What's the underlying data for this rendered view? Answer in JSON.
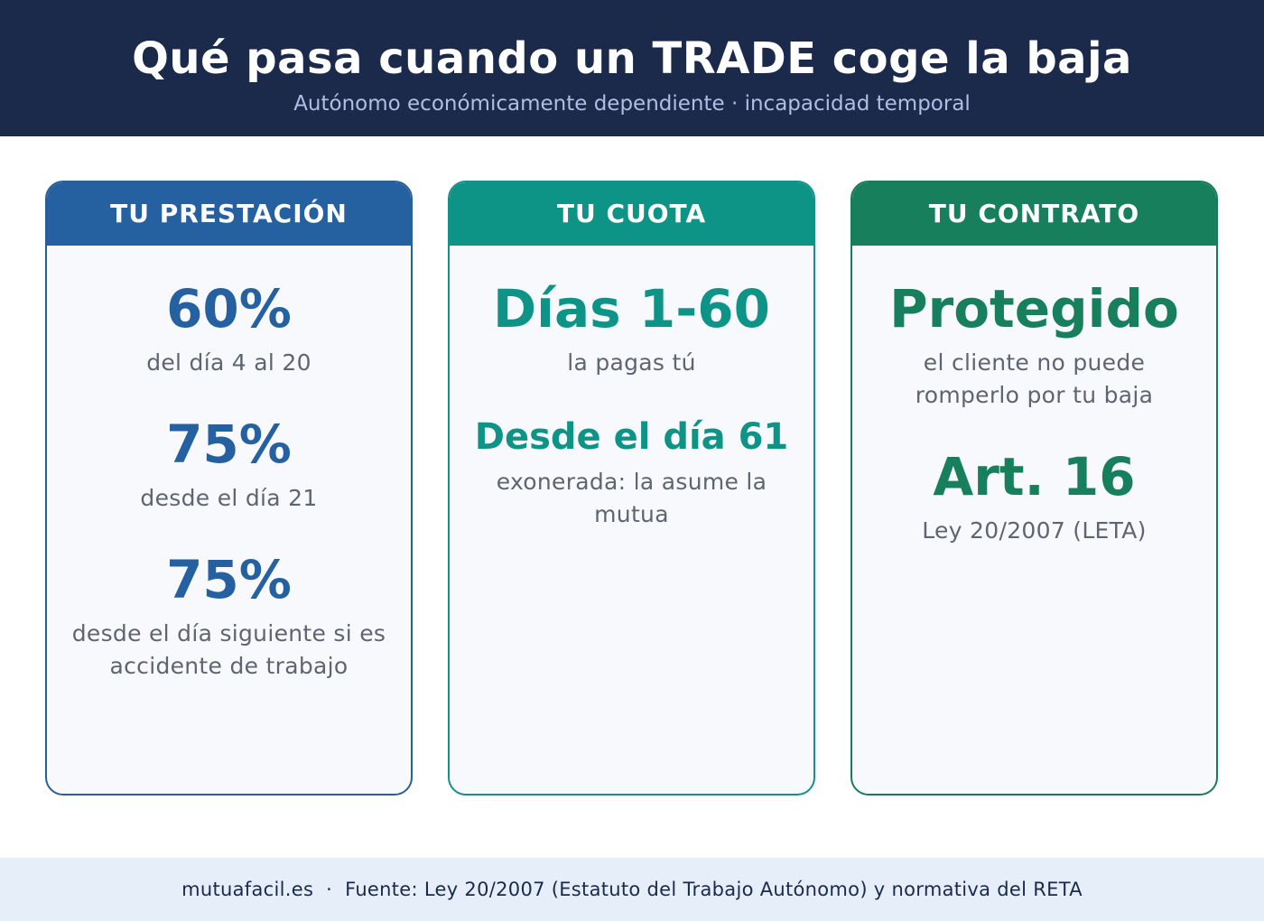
{
  "header": {
    "title": "Qué pasa cuando un TRADE coge la baja",
    "subtitle": "Autónomo económicamente dependiente · incapacidad temporal"
  },
  "cards": [
    {
      "title": "TU PRESTACIÓN",
      "items": [
        {
          "value": "60%",
          "text": "del día 4 al 20"
        },
        {
          "value": "75%",
          "text": "desde el día 21"
        },
        {
          "value": "75%",
          "text_line1": "desde el día siguiente si es",
          "text_line2": "accidente de trabajo"
        }
      ]
    },
    {
      "title": "TU CUOTA",
      "items": [
        {
          "value": "Días 1-60",
          "text": "la pagas tú"
        },
        {
          "value": "Desde el día 61",
          "text_line1": "exonerada: la asume la",
          "text_line2": "mutua"
        }
      ]
    },
    {
      "title": "TU CONTRATO",
      "items": [
        {
          "value": "Protegido",
          "text_line1": "el cliente no puede",
          "text_line2": "romperlo por tu baja"
        },
        {
          "value": "Art. 16",
          "text": "Ley 20/2007 (LETA)"
        }
      ]
    }
  ],
  "footer": {
    "text": "mutuafacil.es  ·  Fuente: Ley 20/2007 (Estatuto del Trabajo Autónomo) y normativa del RETA"
  },
  "colors": {
    "header_bg": "#1b2a4b",
    "prestacion": "#2561a1",
    "cuota": "#0e9487",
    "contrato": "#177f5b",
    "footer_bg": "#e6eef9"
  }
}
